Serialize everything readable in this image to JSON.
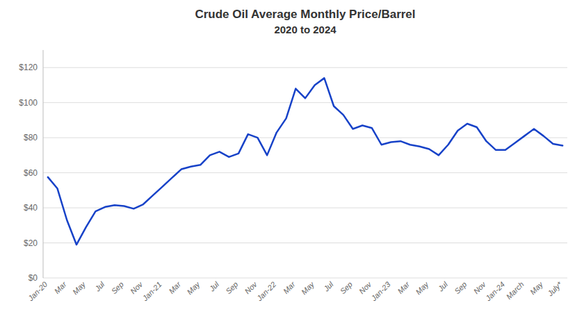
{
  "chart_data": {
    "type": "line",
    "title": "Crude Oil Average Monthly Price/Barrel",
    "subtitle": "2020 to 2024",
    "color": "#1742c8",
    "grid": true,
    "ylim": [
      0,
      130
    ],
    "yticks": [
      {
        "value": 0,
        "label": "$0"
      },
      {
        "value": 20,
        "label": "$20"
      },
      {
        "value": 40,
        "label": "$40"
      },
      {
        "value": 60,
        "label": "$60"
      },
      {
        "value": 80,
        "label": "$80"
      },
      {
        "value": 100,
        "label": "$100"
      },
      {
        "value": 120,
        "label": "$120"
      }
    ],
    "categories": [
      "Jan-20",
      null,
      "Mar",
      null,
      "May",
      null,
      "Jul",
      null,
      "Sep",
      null,
      "Nov",
      null,
      "Jan-21",
      null,
      "Mar",
      null,
      "May",
      null,
      "Jul",
      null,
      "Sep",
      null,
      "Nov",
      null,
      "Jan-22",
      null,
      "Mar",
      null,
      "May",
      null,
      "Jul",
      null,
      "Sep",
      null,
      "Nov",
      null,
      "Jan-23",
      null,
      "Mar",
      null,
      "May",
      null,
      "Jul",
      null,
      "Sep",
      null,
      "Nov",
      null,
      "Jan-24",
      null,
      "March",
      null,
      "May",
      null,
      "July*"
    ],
    "values": [
      57.5,
      51.0,
      33.0,
      19.0,
      29.0,
      38.0,
      40.5,
      41.5,
      41.0,
      39.5,
      42.0,
      47.0,
      52.0,
      57.0,
      62.0,
      63.5,
      64.5,
      70.0,
      72.0,
      69.0,
      71.0,
      82.0,
      80.0,
      70.0,
      83.0,
      91.0,
      108.0,
      102.5,
      110.0,
      114.0,
      98.0,
      93.0,
      85.0,
      87.0,
      85.5,
      76.0,
      77.5,
      78.0,
      76.0,
      75.0,
      73.5,
      70.0,
      76.0,
      84.0,
      88.0,
      86.0,
      78.0,
      73.0,
      73.0,
      77.0,
      81.0,
      85.0,
      81.0,
      76.5,
      75.5
    ]
  }
}
